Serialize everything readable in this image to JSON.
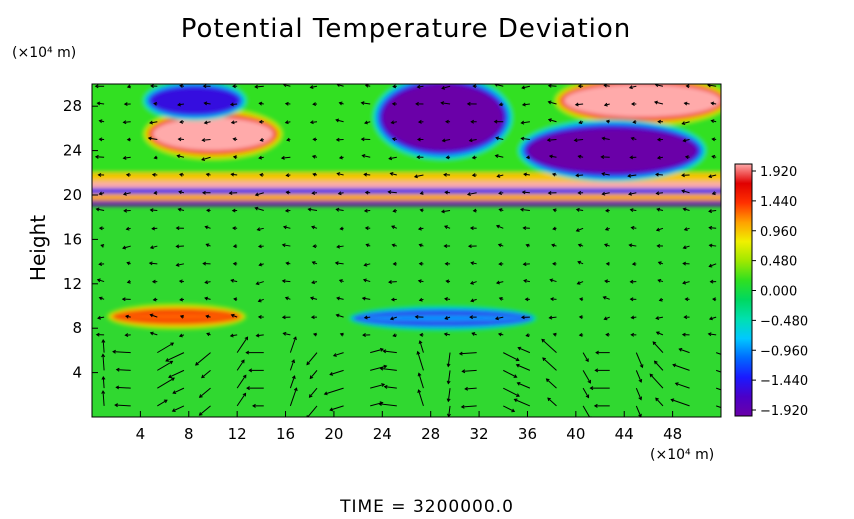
{
  "title": "Potential Temperature Deviation",
  "y_unit": "(×10⁴ m)",
  "x_unit": "(×10⁴ m)",
  "time_label": "TIME  =  3200000.0",
  "chart_data": {
    "type": "heatmap",
    "title": "Potential Temperature Deviation",
    "xlabel": "",
    "ylabel": "Height",
    "xlim": [
      0,
      52
    ],
    "ylim": [
      0,
      30
    ],
    "x_ticks": [
      4,
      8,
      12,
      16,
      20,
      24,
      28,
      32,
      36,
      40,
      44,
      48
    ],
    "y_ticks": [
      4,
      8,
      12,
      16,
      20,
      24,
      28
    ],
    "colorbar": {
      "range": [
        -1.92,
        1.92
      ],
      "tick_labels": [
        "1.920",
        "1.440",
        "0.960",
        "0.480",
        "0.000",
        "−0.480",
        "−0.960",
        "−1.440",
        "−1.920"
      ],
      "colors": [
        "#6a00a8",
        "#4b00c8",
        "#1a1aff",
        "#006aff",
        "#00c8ff",
        "#00e0b0",
        "#00d860",
        "#30e020",
        "#a0e800",
        "#f0f000",
        "#ffa000",
        "#ff3000",
        "#e00000",
        "#ffaaaa"
      ]
    },
    "features": [
      {
        "name": "upper positive cell left",
        "x": [
          5,
          15
        ],
        "y": [
          24,
          27
        ],
        "value": 1.92
      },
      {
        "name": "upper negative cell top-left",
        "x": [
          5,
          12
        ],
        "y": [
          27.5,
          29.5
        ],
        "value": -1.5
      },
      {
        "name": "upper negative cell center",
        "x": [
          24,
          34
        ],
        "y": [
          24,
          30
        ],
        "value": -1.92
      },
      {
        "name": "upper positive cell right",
        "x": [
          39,
          52
        ],
        "y": [
          27,
          30
        ],
        "value": 1.92
      },
      {
        "name": "upper negative layer right",
        "x": [
          36,
          50
        ],
        "y": [
          22,
          26
        ],
        "value": -1.92
      },
      {
        "name": "tropopause banding",
        "x": [
          0,
          52
        ],
        "y": [
          19.5,
          22
        ],
        "value": 1.5
      },
      {
        "name": "mid-level warm streak",
        "x": [
          2,
          12
        ],
        "y": [
          8.7,
          9.4
        ],
        "value": 1.2
      },
      {
        "name": "mid-level cool streak",
        "x": [
          22,
          36
        ],
        "y": [
          8.6,
          9.2
        ],
        "value": -0.9
      }
    ],
    "vector_field": "wind arrows over full domain",
    "grid": false
  }
}
